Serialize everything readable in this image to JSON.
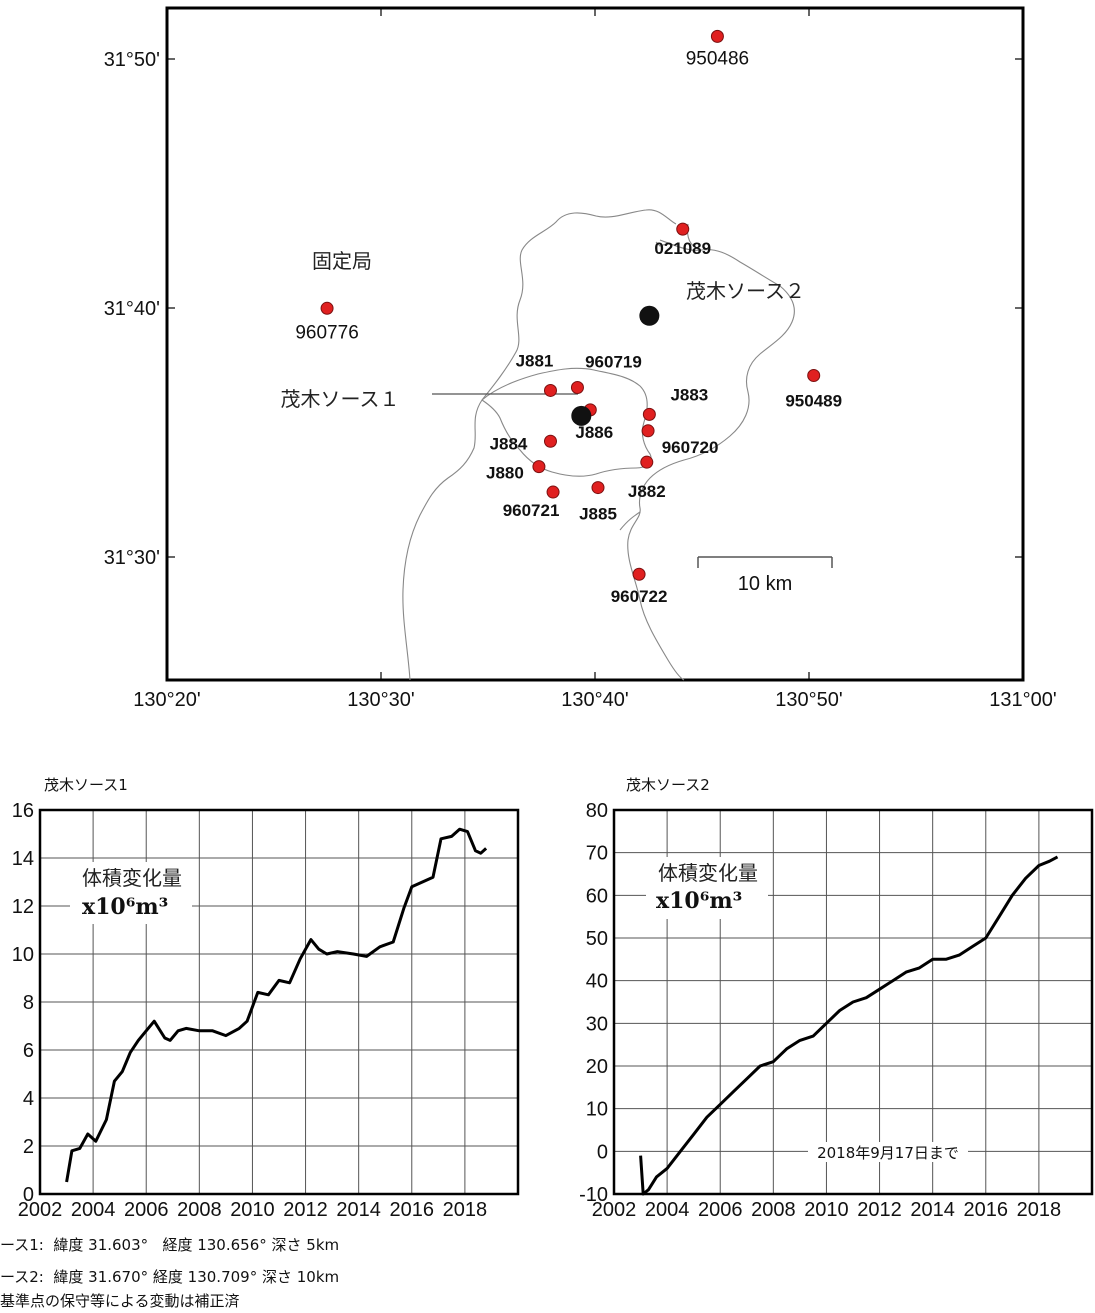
{
  "map": {
    "lon_ticks": [
      "130°20'",
      "130°30'",
      "130°40'",
      "130°50'",
      "131°00'"
    ],
    "lat_ticks": [
      "31°50'",
      "31°40'",
      "31°30'"
    ],
    "fixed_station_label": "固定局",
    "scale_label": "10 km",
    "source1_label": "茂木ソース１",
    "source2_label": "茂木ソース２",
    "station_color": "#e02020",
    "stations": [
      {
        "id": "950486",
        "lon": 130.762,
        "lat": 31.857
      },
      {
        "id": "021089",
        "lon": 130.735,
        "lat": 31.728
      },
      {
        "id": "960776",
        "lon": 130.458,
        "lat": 31.675
      },
      {
        "id": "J881",
        "lon": 130.632,
        "lat": 31.62
      },
      {
        "id": "960719",
        "lon": 130.653,
        "lat": 31.622
      },
      {
        "id": "J883",
        "lon": 130.709,
        "lat": 31.604
      },
      {
        "id": "950489",
        "lon": 130.837,
        "lat": 31.63
      },
      {
        "id": "J884",
        "lon": 130.632,
        "lat": 31.586
      },
      {
        "id": "J886",
        "lon": 130.663,
        "lat": 31.607
      },
      {
        "id": "960720",
        "lon": 130.708,
        "lat": 31.593
      },
      {
        "id": "J880",
        "lon": 130.623,
        "lat": 31.569
      },
      {
        "id": "J882",
        "lon": 130.707,
        "lat": 31.572
      },
      {
        "id": "960721",
        "lon": 130.634,
        "lat": 31.552
      },
      {
        "id": "J885",
        "lon": 130.669,
        "lat": 31.555
      },
      {
        "id": "960722",
        "lon": 130.701,
        "lat": 31.497
      }
    ],
    "sources": [
      {
        "name": "茂木ソース１",
        "lon": 130.656,
        "lat": 31.603
      },
      {
        "name": "茂木ソース２",
        "lon": 130.709,
        "lat": 31.67
      }
    ]
  },
  "chart_data": [
    {
      "type": "line",
      "title": "茂木ソース1",
      "inner_label": "体積変化量",
      "unit_label": "x10⁶m³",
      "x_ticks": [
        "2002",
        "2004",
        "2006",
        "2008",
        "2010",
        "2012",
        "2014",
        "2016",
        "2018"
      ],
      "y_ticks": [
        "0",
        "2",
        "4",
        "6",
        "8",
        "10",
        "12",
        "14",
        "16"
      ],
      "xlim": [
        2002,
        2020
      ],
      "ylim": [
        0,
        16
      ],
      "grid": true,
      "series": [
        {
          "x": [
            2003.0,
            2003.2,
            2003.5,
            2003.8,
            2004.1,
            2004.5,
            2004.8,
            2005.1,
            2005.4,
            2005.7,
            2006.0,
            2006.3,
            2006.7,
            2006.9,
            2007.2,
            2007.5,
            2008.0,
            2008.5,
            2009.0,
            2009.5,
            2009.8,
            2010.2,
            2010.6,
            2011.0,
            2011.4,
            2011.8,
            2012.2,
            2012.5,
            2012.8,
            2013.2,
            2013.8,
            2014.3,
            2014.8,
            2015.3,
            2015.7,
            2016.0,
            2016.4,
            2016.8,
            2017.1,
            2017.5,
            2017.8,
            2018.1,
            2018.4,
            2018.6,
            2018.8
          ],
          "y": [
            0.5,
            1.8,
            1.9,
            2.5,
            2.2,
            3.1,
            4.7,
            5.1,
            5.9,
            6.4,
            6.8,
            7.2,
            6.5,
            6.4,
            6.8,
            6.9,
            6.8,
            6.8,
            6.6,
            6.9,
            7.2,
            8.4,
            8.3,
            8.9,
            8.8,
            9.8,
            10.6,
            10.2,
            10.0,
            10.1,
            10.0,
            9.9,
            10.3,
            10.5,
            11.9,
            12.8,
            13.0,
            13.2,
            14.8,
            14.9,
            15.2,
            15.1,
            14.3,
            14.2,
            14.4
          ]
        }
      ]
    },
    {
      "type": "line",
      "title": "茂木ソース2",
      "inner_label": "体積変化量",
      "unit_label": "x10⁶m³",
      "annotation": "2018年9月17日まで",
      "x_ticks": [
        "2002",
        "2004",
        "2006",
        "2008",
        "2010",
        "2012",
        "2014",
        "2016",
        "2018"
      ],
      "y_ticks": [
        "-10",
        "0",
        "10",
        "20",
        "30",
        "40",
        "50",
        "60",
        "70",
        "80"
      ],
      "xlim": [
        2002,
        2020
      ],
      "ylim": [
        -10,
        80
      ],
      "grid": true,
      "series": [
        {
          "x": [
            2003.0,
            2003.1,
            2003.3,
            2003.6,
            2004.0,
            2004.5,
            2005.0,
            2005.5,
            2006.0,
            2006.5,
            2007.0,
            2007.5,
            2008.0,
            2008.5,
            2009.0,
            2009.5,
            2010.0,
            2010.5,
            2011.0,
            2011.5,
            2012.0,
            2012.5,
            2013.0,
            2013.5,
            2014.0,
            2014.5,
            2015.0,
            2015.5,
            2016.0,
            2016.5,
            2017.0,
            2017.5,
            2018.0,
            2018.4,
            2018.7
          ],
          "y": [
            -1,
            -10,
            -9,
            -6,
            -4,
            0,
            4,
            8,
            11,
            14,
            17,
            20,
            21,
            24,
            26,
            27,
            30,
            33,
            35,
            36,
            38,
            40,
            42,
            43,
            45,
            45,
            46,
            48,
            50,
            55,
            60,
            64,
            67,
            68,
            69
          ]
        }
      ]
    }
  ],
  "notes": {
    "line1": "ース1:  緯度 31.603°   経度 130.656° 深さ 5km",
    "line2": "ース2:  緯度 31.670° 経度 130.709° 深さ 10km",
    "line3": "基準点の保守等による変動は補正済"
  }
}
